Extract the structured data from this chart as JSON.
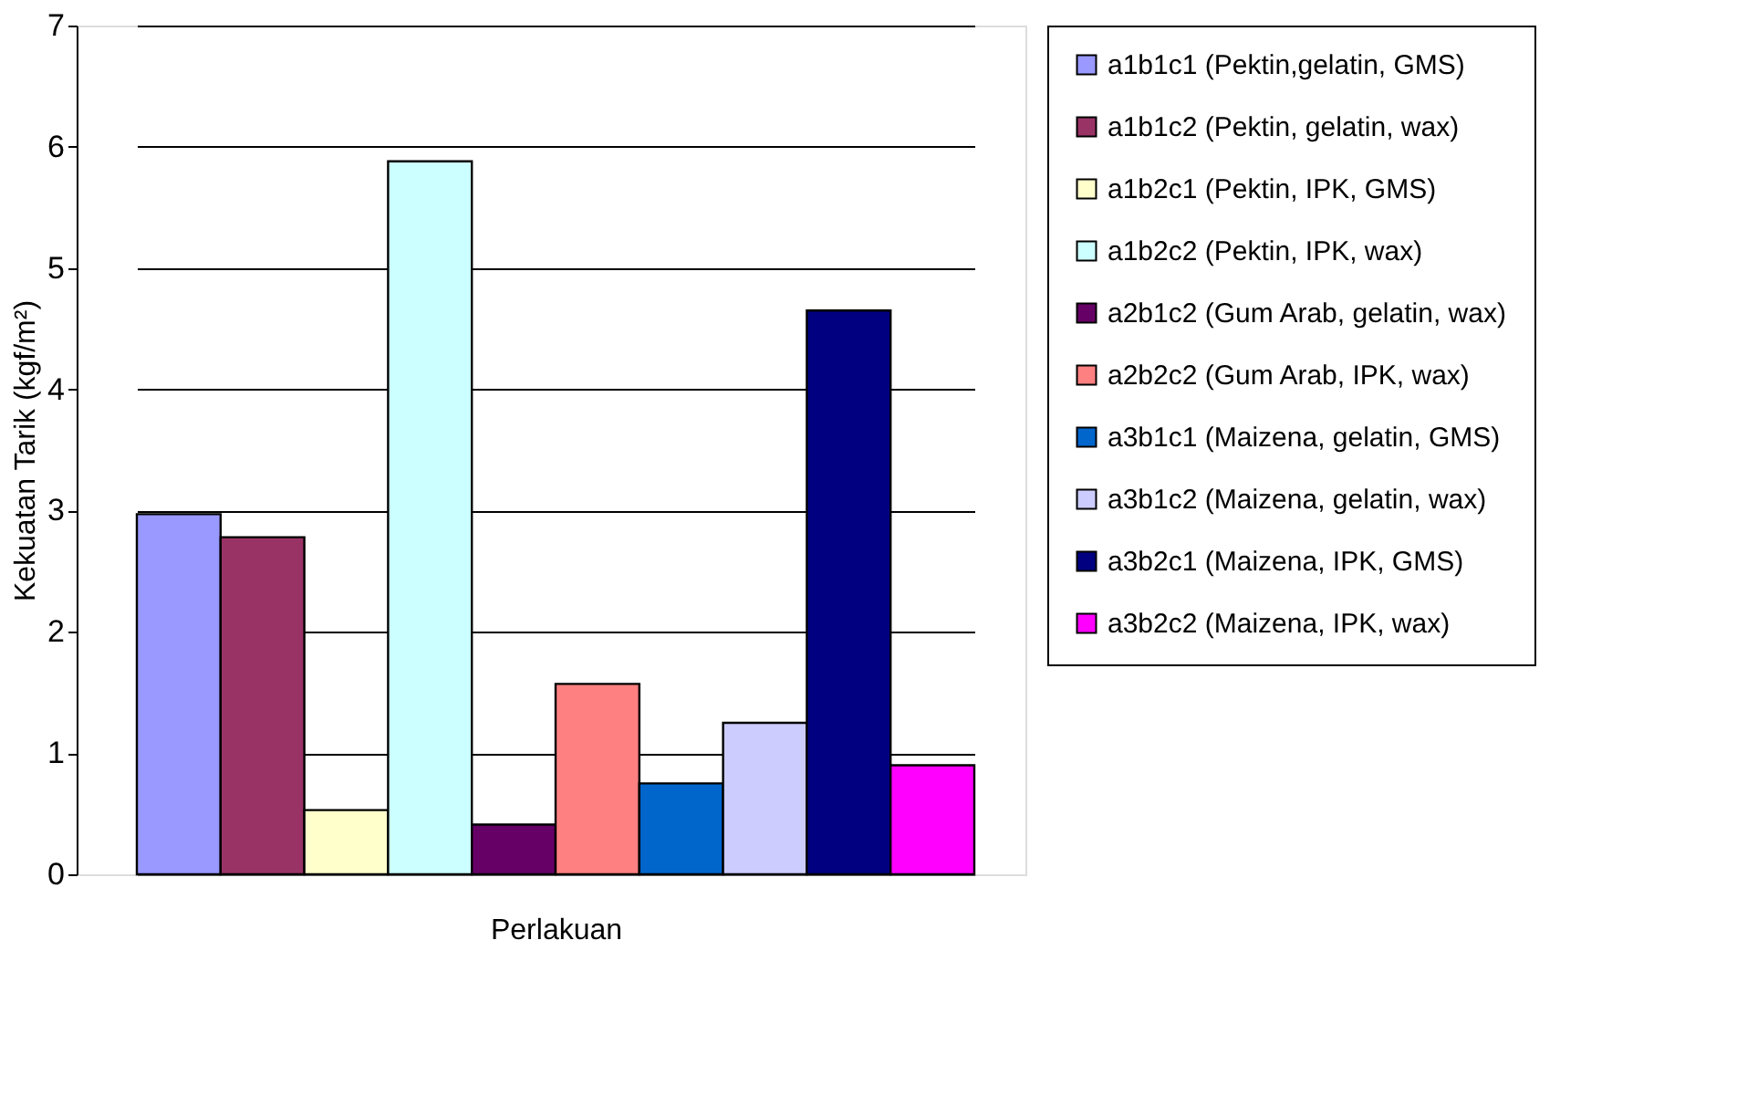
{
  "chart_data": {
    "type": "bar",
    "xlabel": "Perlakuan",
    "ylabel": "Kekuatan Tarik (kgf/m²)",
    "categories": [
      null
    ],
    "ylim": [
      0,
      7
    ],
    "yticks": [
      0,
      1,
      2,
      3,
      4,
      5,
      6,
      7
    ],
    "grid": "y",
    "legend": "right",
    "series": [
      {
        "name": "a1b1c1 (Pektin,gelatin, GMS)",
        "color": "#9999ff",
        "values": [
          2.97
        ]
      },
      {
        "name": "a1b1c2 (Pektin, gelatin, wax)",
        "color": "#993366",
        "values": [
          2.78
        ]
      },
      {
        "name": "a1b2c1 (Pektin, IPK, GMS)",
        "color": "#ffffcc",
        "values": [
          0.53
        ]
      },
      {
        "name": "a1b2c2 (Pektin, IPK, wax)",
        "color": "#ccffff",
        "values": [
          5.88
        ]
      },
      {
        "name": "a2b1c2 (Gum Arab, gelatin, wax)",
        "color": "#660066",
        "values": [
          0.41
        ]
      },
      {
        "name": "a2b2c2 (Gum Arab, IPK, wax)",
        "color": "#ff8080",
        "values": [
          1.57
        ]
      },
      {
        "name": "a3b1c1 (Maizena, gelatin, GMS)",
        "color": "#0066cc",
        "values": [
          0.75
        ]
      },
      {
        "name": "a3b1c2 (Maizena, gelatin, wax)",
        "color": "#ccccff",
        "values": [
          1.25
        ]
      },
      {
        "name": "a3b2c1 (Maizena, IPK, GMS)",
        "color": "#000080",
        "values": [
          4.65
        ]
      },
      {
        "name": "a3b2c2 (Maizena, IPK, wax)",
        "color": "#ff00ff",
        "values": [
          0.9
        ]
      }
    ]
  }
}
